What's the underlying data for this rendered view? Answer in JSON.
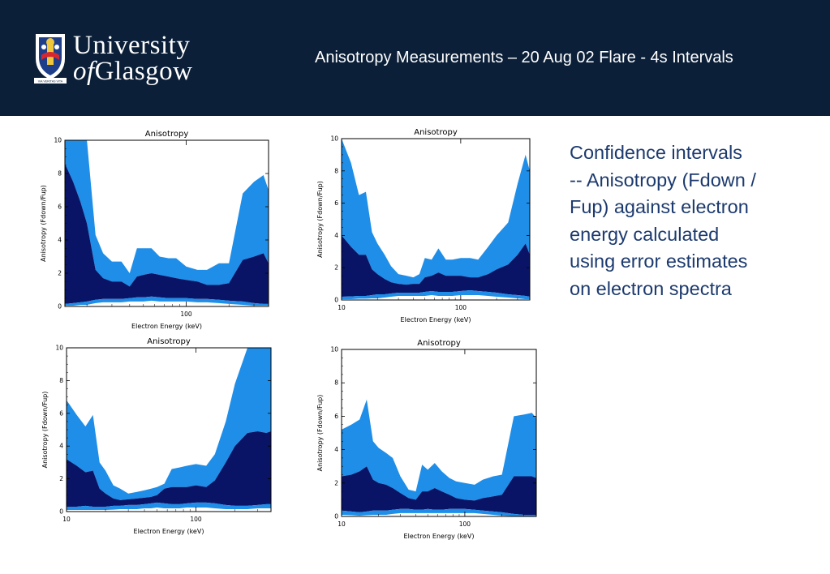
{
  "header": {
    "logo": {
      "line1": "University",
      "line2_of": "of",
      "line2_rest": "Glasgow",
      "motto": "VIA VERITAS VITA"
    },
    "title": "Anisotropy Measurements – 20 Aug 02 Flare - 4s Intervals"
  },
  "side_text": {
    "lines": [
      "Confidence intervals",
      "-- Anisotropy (Fdown /",
      "Fup) against electron",
      "energy calculated",
      "using error estimates",
      "on electron spectra"
    ]
  },
  "colors": {
    "header_bg": "#0b1f38",
    "outer_band": "#1e8ee8",
    "inner_band": "#0a1466",
    "lower_band": "#1e8ee8",
    "text_blue": "#1c3a6e"
  },
  "chart_data": [
    {
      "type": "area",
      "title": "Anisotropy",
      "xlabel": "Electron Energy (keV)",
      "ylabel": "Anisotropy (Fdown/Fup)",
      "xscale": "log",
      "xlim": [
        14,
        380
      ],
      "ylim": [
        0,
        10
      ],
      "xticks": [
        {
          "value": 100,
          "label": "100"
        }
      ],
      "yticks": [
        0,
        2,
        4,
        6,
        8,
        10
      ],
      "x": [
        14,
        16,
        18,
        20,
        23,
        26,
        30,
        35,
        40,
        45,
        50,
        57,
        65,
        75,
        85,
        100,
        120,
        140,
        170,
        200,
        250,
        300,
        350,
        380
      ],
      "series": [
        {
          "values": [
            10,
            10,
            10,
            10,
            4.3,
            3.2,
            2.7,
            2.7,
            2.0,
            3.5,
            3.5,
            3.5,
            3.0,
            2.9,
            2.9,
            2.4,
            2.2,
            2.2,
            2.6,
            2.6,
            6.8,
            7.5,
            7.9,
            7.0
          ]
        },
        {
          "values": [
            8.6,
            7.5,
            6.3,
            5.0,
            2.2,
            1.7,
            1.5,
            1.5,
            1.2,
            1.8,
            1.9,
            2.0,
            1.9,
            1.8,
            1.7,
            1.6,
            1.5,
            1.3,
            1.3,
            1.4,
            2.8,
            3.0,
            3.2,
            2.6
          ]
        },
        {
          "values": [
            0.15,
            0.2,
            0.25,
            0.3,
            0.4,
            0.45,
            0.45,
            0.45,
            0.5,
            0.55,
            0.55,
            0.6,
            0.55,
            0.5,
            0.5,
            0.5,
            0.45,
            0.45,
            0.4,
            0.35,
            0.3,
            0.2,
            0.15,
            0.15
          ]
        },
        {
          "values": [
            0.05,
            0.05,
            0.1,
            0.1,
            0.2,
            0.25,
            0.25,
            0.25,
            0.3,
            0.3,
            0.3,
            0.35,
            0.3,
            0.3,
            0.3,
            0.3,
            0.25,
            0.25,
            0.2,
            0.15,
            0.1,
            0.05,
            0.05,
            0.05
          ]
        }
      ]
    },
    {
      "type": "area",
      "title": "Anisotropy",
      "xlabel": "Electron Energy (keV)",
      "ylabel": "Anisotropy (Fdown/Fup)",
      "xscale": "log",
      "xlim": [
        10,
        380
      ],
      "ylim": [
        0,
        10
      ],
      "xticks": [
        {
          "value": 10,
          "label": "10"
        },
        {
          "value": 100,
          "label": "100"
        }
      ],
      "yticks": [
        0,
        2,
        4,
        6,
        8,
        10
      ],
      "x": [
        10,
        12,
        14,
        16,
        18,
        20,
        23,
        26,
        30,
        35,
        40,
        45,
        50,
        57,
        65,
        75,
        85,
        100,
        120,
        140,
        170,
        200,
        250,
        300,
        350,
        380
      ],
      "series": [
        {
          "values": [
            10,
            8.5,
            6.5,
            6.7,
            4.2,
            3.5,
            2.8,
            2.1,
            1.6,
            1.5,
            1.4,
            1.6,
            2.6,
            2.5,
            3.2,
            2.5,
            2.5,
            2.6,
            2.6,
            2.5,
            3.3,
            4.0,
            4.8,
            7.2,
            9.0,
            8.0
          ]
        },
        {
          "values": [
            4.0,
            3.3,
            2.8,
            2.8,
            1.9,
            1.6,
            1.3,
            1.1,
            1.0,
            0.95,
            1.0,
            1.0,
            1.4,
            1.5,
            1.7,
            1.5,
            1.5,
            1.5,
            1.4,
            1.4,
            1.6,
            1.9,
            2.2,
            2.8,
            3.5,
            2.8
          ]
        },
        {
          "values": [
            0.2,
            0.22,
            0.25,
            0.25,
            0.3,
            0.35,
            0.35,
            0.4,
            0.45,
            0.45,
            0.45,
            0.45,
            0.5,
            0.55,
            0.5,
            0.5,
            0.5,
            0.55,
            0.6,
            0.55,
            0.5,
            0.45,
            0.35,
            0.3,
            0.25,
            0.2
          ]
        },
        {
          "values": [
            0.05,
            0.05,
            0.08,
            0.08,
            0.1,
            0.1,
            0.15,
            0.2,
            0.25,
            0.25,
            0.25,
            0.25,
            0.25,
            0.3,
            0.25,
            0.25,
            0.25,
            0.3,
            0.3,
            0.3,
            0.25,
            0.2,
            0.15,
            0.1,
            0.05,
            0.05
          ]
        }
      ]
    },
    {
      "type": "area",
      "title": "Anisotropy",
      "xlabel": "Electron Energy (keV)",
      "ylabel": "Anisotropy (Fdown/Fup)",
      "xscale": "log",
      "xlim": [
        10,
        380
      ],
      "ylim": [
        0,
        10
      ],
      "xticks": [
        {
          "value": 10,
          "label": "10"
        },
        {
          "value": 100,
          "label": "100"
        }
      ],
      "yticks": [
        0,
        2,
        4,
        6,
        8,
        10
      ],
      "x": [
        10,
        12,
        14,
        16,
        18,
        20,
        23,
        26,
        30,
        35,
        40,
        45,
        50,
        57,
        65,
        75,
        85,
        100,
        120,
        140,
        170,
        200,
        250,
        300,
        350,
        380
      ],
      "series": [
        {
          "values": [
            6.8,
            5.9,
            5.2,
            5.9,
            3.0,
            2.5,
            1.6,
            1.4,
            1.1,
            1.2,
            1.3,
            1.4,
            1.5,
            1.7,
            2.6,
            2.7,
            2.8,
            2.9,
            2.8,
            3.5,
            5.5,
            7.8,
            10,
            10,
            10,
            10
          ]
        },
        {
          "values": [
            3.2,
            2.8,
            2.4,
            2.5,
            1.4,
            1.1,
            0.8,
            0.7,
            0.75,
            0.8,
            0.85,
            0.9,
            1.0,
            1.4,
            1.5,
            1.5,
            1.5,
            1.6,
            1.5,
            1.9,
            3.0,
            4.0,
            4.8,
            4.9,
            4.8,
            4.9
          ]
        },
        {
          "values": [
            0.3,
            0.3,
            0.35,
            0.3,
            0.3,
            0.3,
            0.35,
            0.35,
            0.4,
            0.4,
            0.45,
            0.5,
            0.55,
            0.5,
            0.45,
            0.45,
            0.5,
            0.55,
            0.55,
            0.5,
            0.4,
            0.35,
            0.35,
            0.4,
            0.45,
            0.45
          ]
        },
        {
          "values": [
            0.1,
            0.1,
            0.1,
            0.1,
            0.1,
            0.1,
            0.12,
            0.15,
            0.15,
            0.15,
            0.2,
            0.2,
            0.25,
            0.2,
            0.2,
            0.2,
            0.25,
            0.25,
            0.25,
            0.2,
            0.15,
            0.15,
            0.15,
            0.2,
            0.2,
            0.2
          ]
        }
      ]
    },
    {
      "type": "area",
      "title": "Anisotropy",
      "xlabel": "Electron Energy (keV)",
      "ylabel": "Anisotropy (Fdown/Fup)",
      "xscale": "log",
      "xlim": [
        10,
        380
      ],
      "ylim": [
        0,
        10
      ],
      "xticks": [
        {
          "value": 10,
          "label": "10"
        },
        {
          "value": 100,
          "label": "100"
        }
      ],
      "yticks": [
        0,
        2,
        4,
        6,
        8,
        10
      ],
      "x": [
        10,
        12,
        14,
        16,
        18,
        20,
        23,
        26,
        30,
        35,
        40,
        45,
        50,
        57,
        65,
        75,
        85,
        100,
        120,
        140,
        170,
        200,
        250,
        300,
        350,
        380
      ],
      "series": [
        {
          "values": [
            5.2,
            5.5,
            5.8,
            7.0,
            4.5,
            4.1,
            3.8,
            3.5,
            2.4,
            1.6,
            1.5,
            3.1,
            2.8,
            3.2,
            2.7,
            2.3,
            2.1,
            2.0,
            1.9,
            2.2,
            2.4,
            2.5,
            6.0,
            6.1,
            6.2,
            5.9
          ]
        },
        {
          "values": [
            2.4,
            2.5,
            2.7,
            3.0,
            2.2,
            2.0,
            1.9,
            1.7,
            1.4,
            1.1,
            1.0,
            1.5,
            1.5,
            1.7,
            1.5,
            1.3,
            1.1,
            1.0,
            0.95,
            1.1,
            1.2,
            1.3,
            2.4,
            2.4,
            2.4,
            2.3
          ]
        },
        {
          "values": [
            0.35,
            0.3,
            0.25,
            0.3,
            0.35,
            0.35,
            0.35,
            0.4,
            0.45,
            0.45,
            0.4,
            0.4,
            0.45,
            0.4,
            0.4,
            0.45,
            0.45,
            0.45,
            0.4,
            0.35,
            0.3,
            0.25,
            0.15,
            0.1,
            0.1,
            0.1
          ]
        },
        {
          "values": [
            0.1,
            0.08,
            0.05,
            0.08,
            0.1,
            0.1,
            0.1,
            0.15,
            0.2,
            0.2,
            0.2,
            0.2,
            0.2,
            0.2,
            0.2,
            0.2,
            0.2,
            0.2,
            0.2,
            0.15,
            0.1,
            0.05,
            0.02,
            0.0,
            0.0,
            0.0
          ]
        }
      ]
    }
  ]
}
